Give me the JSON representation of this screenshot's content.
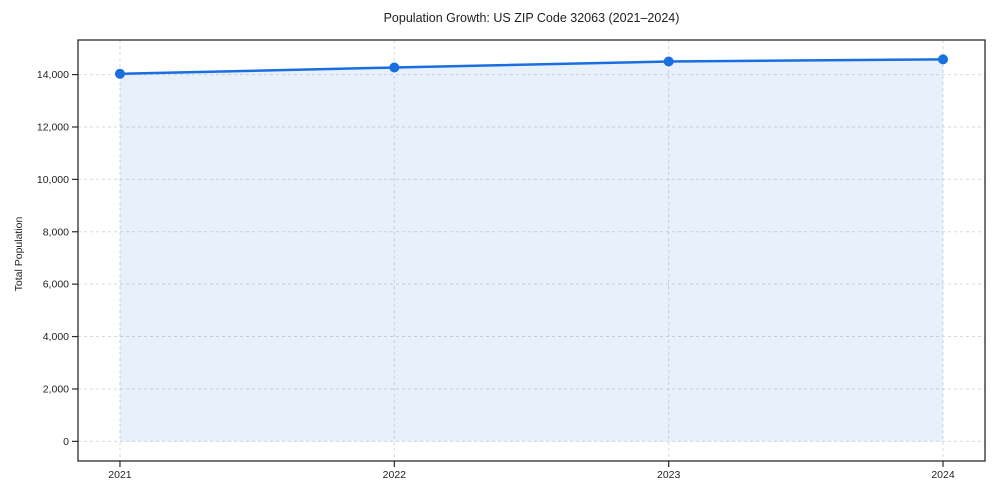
{
  "figure": {
    "background": "#ffffff"
  },
  "chart_data": {
    "type": "area",
    "title": "Population Growth: US ZIP Code 32063 (2021–2024)",
    "xlabel": "",
    "ylabel": "Total Population",
    "x": [
      2021,
      2022,
      2023,
      2024
    ],
    "series": [
      {
        "name": "Total Population",
        "values": [
          14030,
          14270,
          14500,
          14580
        ]
      }
    ],
    "x_ticks": {
      "values": [
        2021,
        2022,
        2023,
        2024
      ],
      "labels": [
        "2021",
        "2022",
        "2023",
        "2024"
      ]
    },
    "y_ticks": {
      "values": [
        0,
        2000,
        4000,
        6000,
        8000,
        10000,
        12000,
        14000
      ],
      "labels": [
        "0",
        "2,000",
        "4,000",
        "6,000",
        "8,000",
        "10,000",
        "12,000",
        "14,000"
      ]
    },
    "xlim": [
      2020.847,
      2024.153
    ],
    "ylim": [
      -750,
      15320
    ],
    "grid": true,
    "grid_style": "dashed",
    "legend": false,
    "fill_to": 0,
    "marker": "circle",
    "colors": {
      "line": "#1a6fe0",
      "marker": "#1a6fe0",
      "fill": "rgba(26, 111, 224, 0.10)",
      "grid": "#d9d9d9",
      "spine": "#2b2b2b",
      "tick": "#2b2b2b",
      "text": "#1f1f1f",
      "background": "#ffffff"
    }
  }
}
